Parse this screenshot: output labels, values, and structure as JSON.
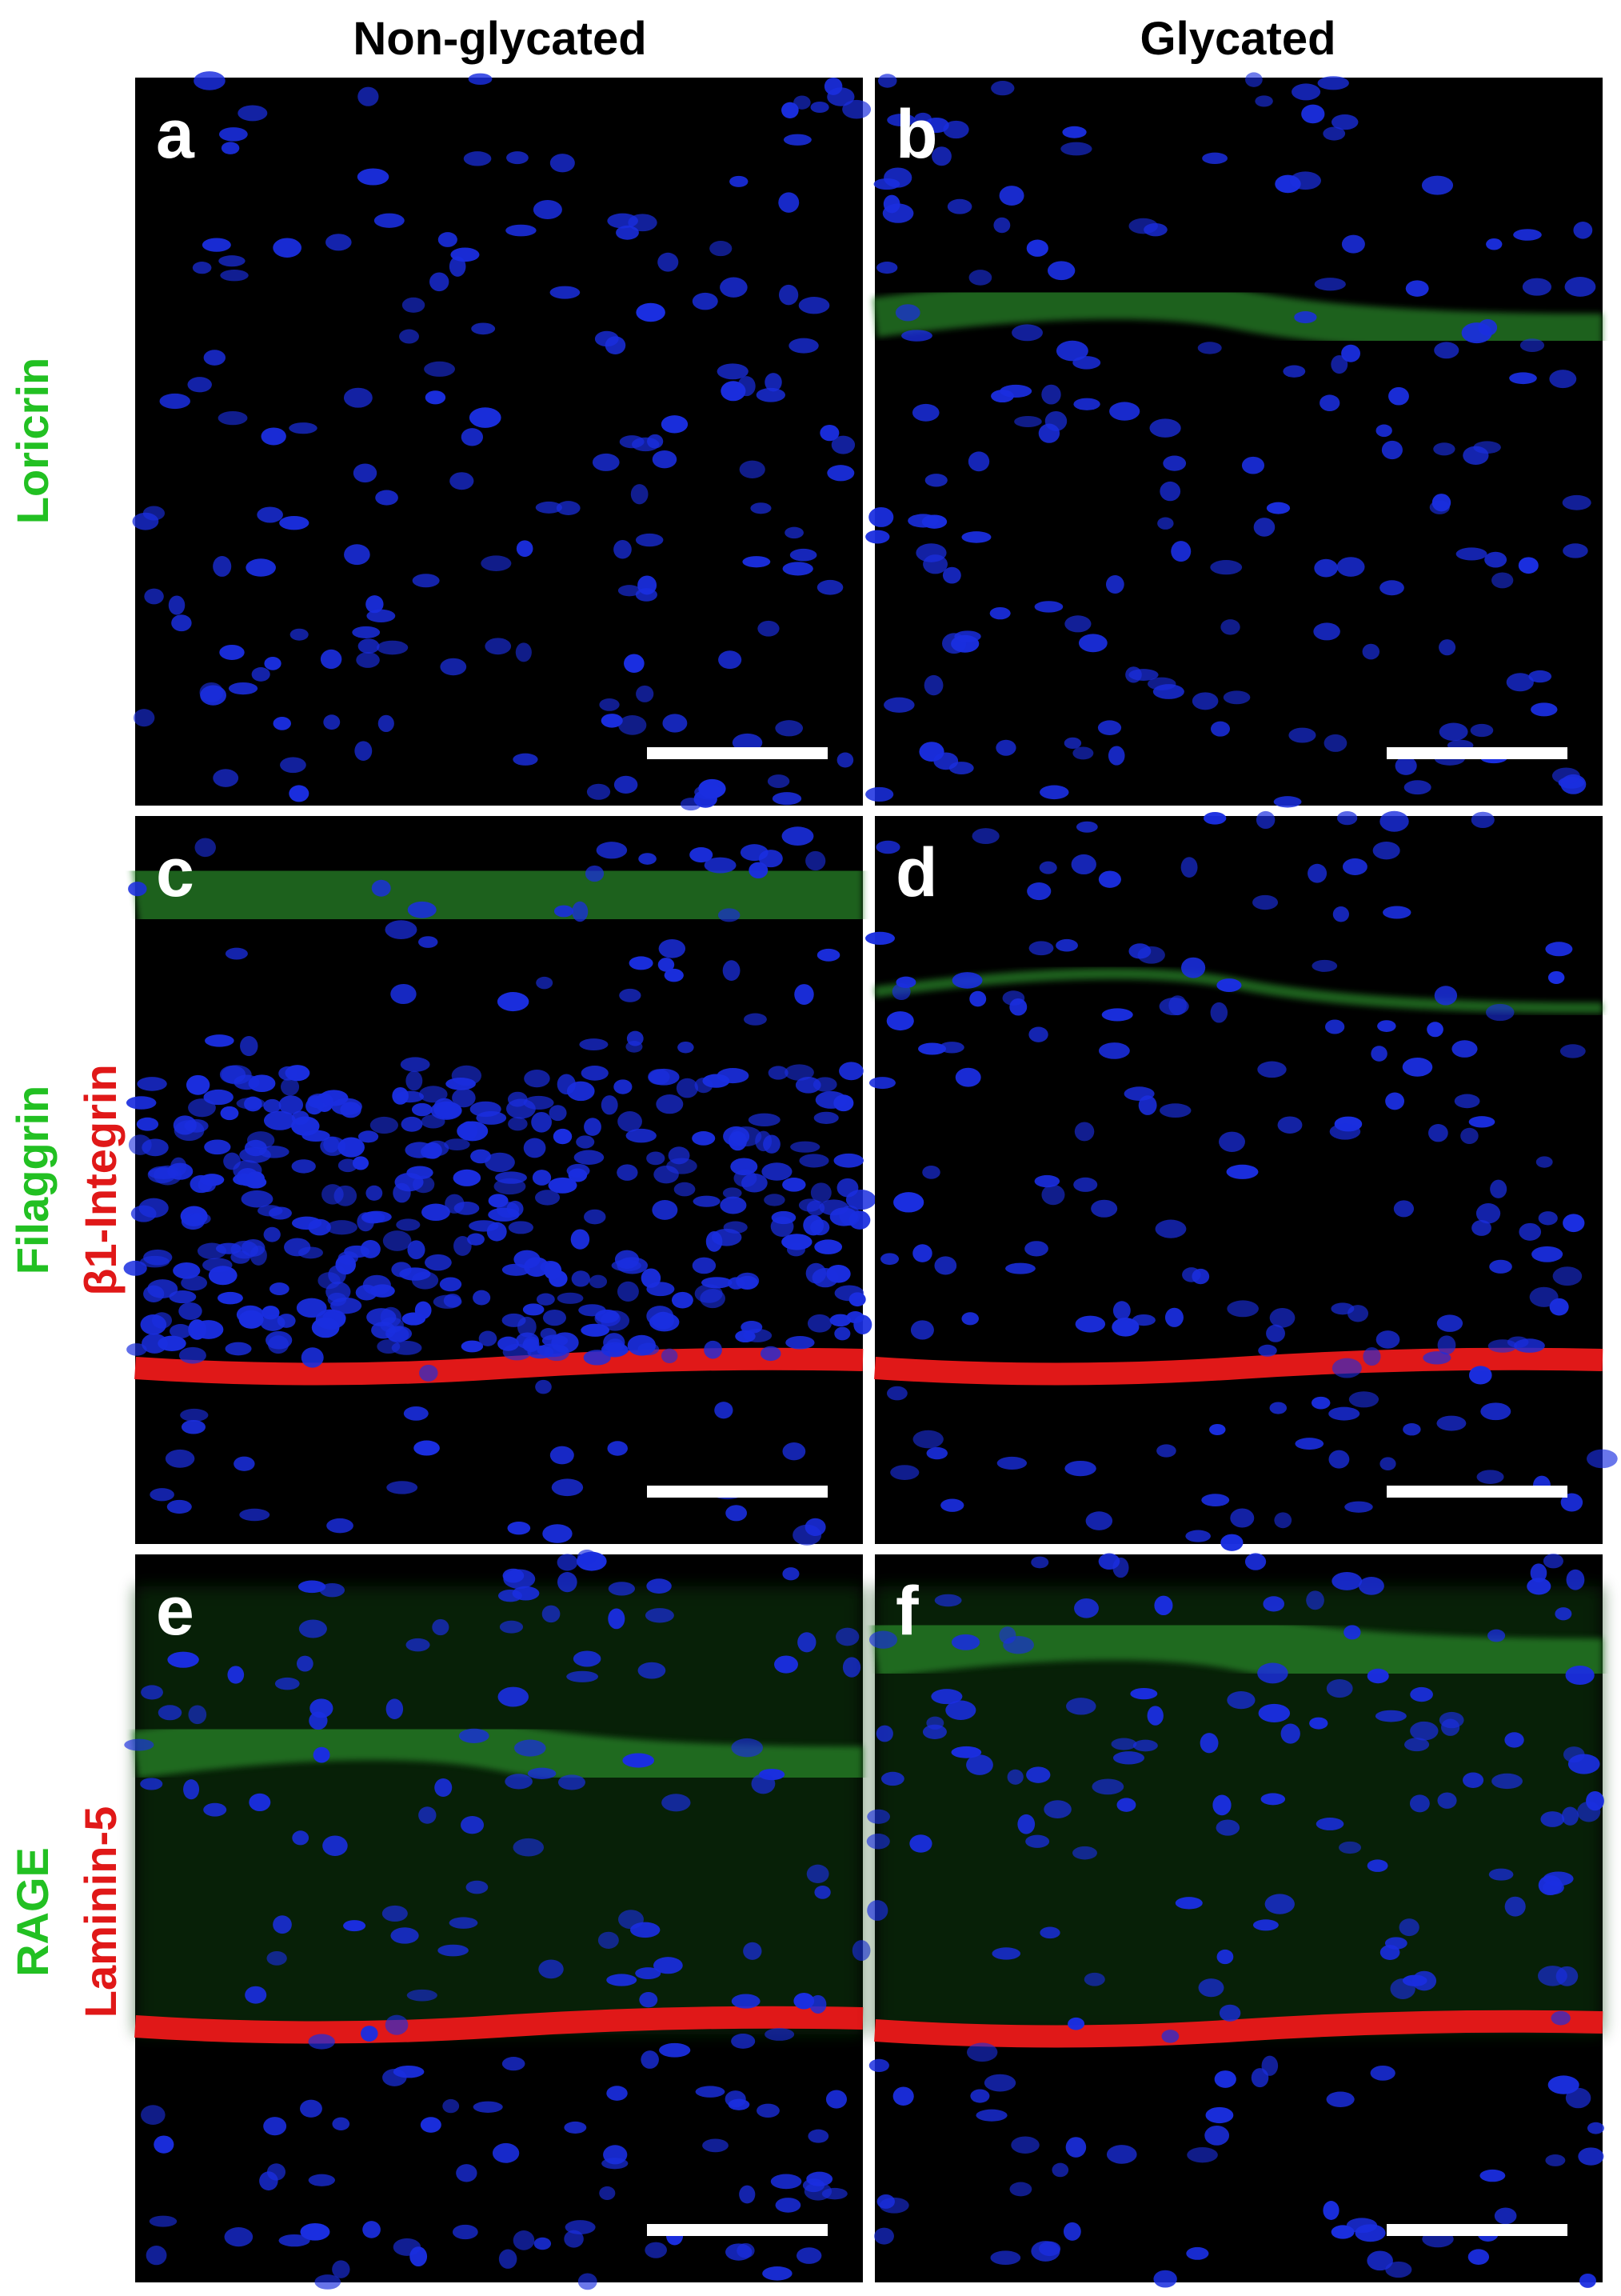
{
  "columns": [
    "Non-glycated",
    "Glycated"
  ],
  "rows": [
    {
      "green": "Loricrin"
    },
    {
      "green": "Filaggrin",
      "red": "β1-Integrin"
    },
    {
      "green": "RAGE",
      "red": "Laminin-5"
    }
  ],
  "panels": [
    "a",
    "b",
    "c",
    "d",
    "e",
    "f"
  ]
}
